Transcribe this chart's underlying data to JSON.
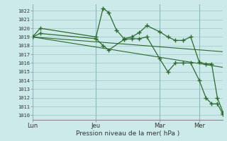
{
  "background_color": "#cceaea",
  "grid_color": "#aacccc",
  "line_color": "#2d6a2d",
  "xlabel": "Pression niveau de la mer( hPa )",
  "ylim": [
    1009.5,
    1022.8
  ],
  "yticks": [
    1010,
    1011,
    1012,
    1013,
    1014,
    1015,
    1016,
    1017,
    1018,
    1019,
    1020,
    1021,
    1022
  ],
  "xtick_labels": [
    "Lun",
    "Jeu",
    "Mar",
    "Mer"
  ],
  "xtick_positions": [
    0,
    0.333,
    0.667,
    0.875
  ],
  "vlines_x": [
    0.0,
    0.333,
    0.667,
    0.875
  ],
  "xlim": [
    0,
    1.0
  ],
  "series1_x": [
    0.0,
    0.04,
    0.333,
    0.37,
    0.4,
    0.44,
    0.48,
    0.52,
    0.56,
    0.6,
    0.667,
    0.71,
    0.75,
    0.79,
    0.83,
    0.875,
    0.91,
    0.94,
    0.97,
    1.0
  ],
  "series1_y": [
    1019.0,
    1020.0,
    1019.0,
    1022.3,
    1021.8,
    1019.8,
    1018.8,
    1019.0,
    1019.5,
    1020.3,
    1019.6,
    1019.0,
    1018.6,
    1018.6,
    1019.0,
    1016.1,
    1015.9,
    1015.9,
    1012.0,
    1010.3
  ],
  "series2_x": [
    0.0,
    0.04,
    0.333,
    0.37,
    0.4,
    0.48,
    0.52,
    0.56,
    0.6,
    0.667,
    0.71,
    0.75,
    0.79,
    0.83,
    0.875,
    0.91,
    0.94,
    0.97,
    1.0
  ],
  "series2_y": [
    1019.0,
    1019.4,
    1018.8,
    1018.0,
    1017.5,
    1018.7,
    1018.8,
    1018.8,
    1019.0,
    1016.5,
    1015.0,
    1016.0,
    1016.0,
    1016.0,
    1014.0,
    1012.0,
    1011.3,
    1011.3,
    1010.1
  ],
  "trend1_x": [
    0.0,
    1.0
  ],
  "trend1_y": [
    1019.0,
    1017.3
  ],
  "trend2_x": [
    0.0,
    1.0
  ],
  "trend2_y": [
    1019.0,
    1015.5
  ]
}
